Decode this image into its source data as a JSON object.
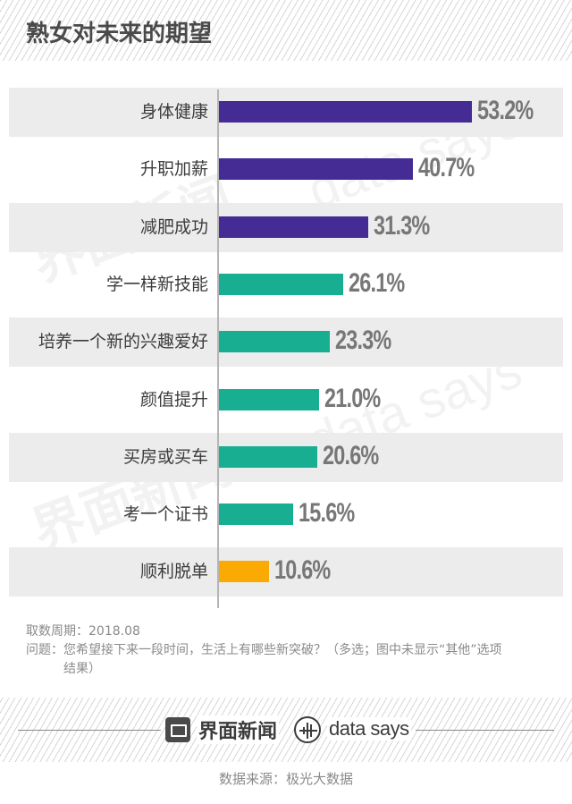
{
  "title": "熟女对未来的期望",
  "chart_data": {
    "type": "bar",
    "orientation": "horizontal",
    "title": "熟女对未来的期望",
    "categories": [
      "身体健康",
      "升职加薪",
      "减肥成功",
      "学一样新技能",
      "培养一个新的兴趣爱好",
      "颜值提升",
      "买房或买车",
      "考一个证书",
      "顺利脱单"
    ],
    "values": [
      53.2,
      40.7,
      31.3,
      26.1,
      23.3,
      21.0,
      20.6,
      15.6,
      10.6
    ],
    "value_labels": [
      "53.2%",
      "40.7%",
      "31.3%",
      "26.1%",
      "23.3%",
      "21.0%",
      "20.6%",
      "15.6%",
      "10.6%"
    ],
    "bar_colors": [
      "#452c94",
      "#452c94",
      "#452c94",
      "#17ae92",
      "#17ae92",
      "#17ae92",
      "#17ae92",
      "#17ae92",
      "#fbaa04"
    ],
    "xlabel": "",
    "ylabel": "",
    "unit": "%",
    "grid": false,
    "legend": "none",
    "xlim": [
      0,
      60
    ]
  },
  "colors": {
    "purple": "#452c94",
    "teal": "#17ae92",
    "orange": "#fbaa04",
    "row_shade": "#ececec",
    "value_text": "#777777"
  },
  "notes": {
    "period_label": "取数周期：",
    "period_value": "2018.08",
    "question_label": "问题：",
    "question_text": "您希望接下来一段时间，生活上有哪些新突破？（多选；图中未显示“其他”选项结果）"
  },
  "footer": {
    "brand_cn": "界面新闻",
    "brand_en": "data says",
    "source": "数据来源：极光大数据"
  },
  "watermarks": {
    "cn": "界面新闻",
    "en": "data says"
  }
}
